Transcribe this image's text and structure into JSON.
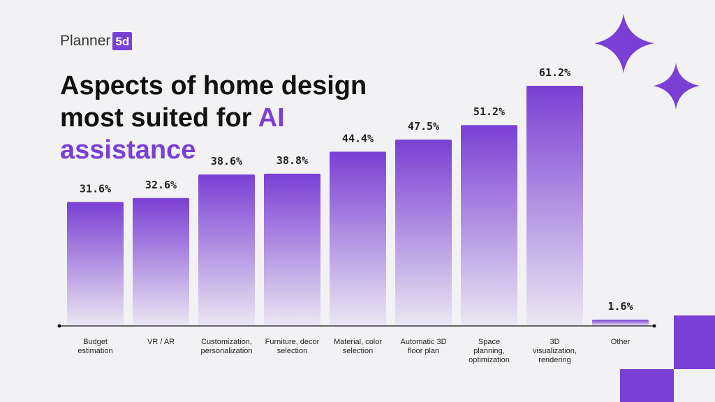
{
  "logo": "Planner",
  "logo_mark": "5d",
  "chart_data": {
    "type": "bar",
    "title": "Aspects of home design most suited for",
    "title_highlight": "AI assistance",
    "categories": [
      "Budget estimation",
      "VR / AR",
      "Customization, personalization",
      "Furniture, decor selection",
      "Material, color selection",
      "Automatic 3D floor plan",
      "Space planning, optimization",
      "3D visualization, rendering",
      "Other"
    ],
    "values": [
      31.6,
      32.6,
      38.6,
      38.8,
      44.4,
      47.5,
      51.2,
      61.2,
      1.6
    ],
    "value_labels": [
      "31.6%",
      "32.6%",
      "38.6%",
      "38.8%",
      "44.4%",
      "47.5%",
      "51.2%",
      "61.2%",
      "1.6%"
    ],
    "color": "#7a3fd4",
    "ylim": [
      0,
      61.2
    ]
  }
}
